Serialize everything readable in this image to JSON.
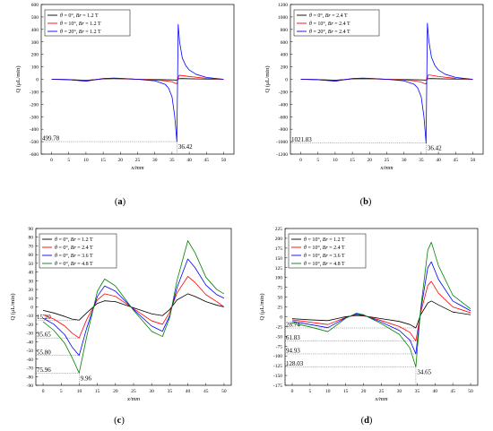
{
  "chart_data": [
    {
      "type": "line",
      "caption": "(a)",
      "ylabel": "Q (μL/min)",
      "xlabel": "x/mm",
      "xlim": [
        -3,
        53
      ],
      "ylim": [
        -600,
        600
      ],
      "xticks": [
        0,
        5,
        10,
        15,
        20,
        25,
        30,
        35,
        40,
        45,
        50
      ],
      "yticks": [
        -600,
        -500,
        -400,
        -300,
        -200,
        -100,
        0,
        100,
        200,
        300,
        400,
        500,
        600
      ],
      "legend_position": "top-left",
      "series": [
        {
          "name": "θ = 0°, Br = 1.2 T",
          "color": "#000000",
          "x": [
            0,
            5,
            10,
            15,
            18,
            20,
            25,
            30,
            34,
            35,
            36,
            36.42,
            37,
            38,
            40,
            45,
            50
          ],
          "y": [
            0,
            -2,
            -8,
            3,
            5,
            4,
            0,
            -2,
            -4,
            -5,
            -6,
            -6,
            5,
            6,
            4,
            2,
            0
          ]
        },
        {
          "name": "θ = 10°, Br = 1.2 T",
          "color": "#ff0000",
          "x": [
            0,
            5,
            10,
            15,
            18,
            20,
            25,
            30,
            33,
            35,
            36,
            36.42,
            37,
            38,
            40,
            45,
            50
          ],
          "y": [
            0,
            -3,
            -12,
            5,
            8,
            6,
            0,
            -6,
            -12,
            -20,
            -32,
            -35,
            32,
            30,
            22,
            8,
            0
          ]
        },
        {
          "name": "θ = 20°, Br = 1.2 T",
          "color": "#0000ff",
          "x": [
            0,
            5,
            10,
            15,
            18,
            20,
            25,
            30,
            33,
            34,
            35,
            35.8,
            36.42,
            36.8,
            37.2,
            38,
            39,
            40,
            42,
            45,
            50
          ],
          "y": [
            0,
            -3,
            -15,
            6,
            10,
            8,
            0,
            -12,
            -40,
            -70,
            -140,
            -300,
            -499.78,
            440,
            300,
            170,
            110,
            75,
            40,
            15,
            0
          ]
        }
      ],
      "annotations": [
        {
          "text": "499.78",
          "x": 0,
          "y": -499.78
        },
        {
          "text": "36.42",
          "x": 36.42,
          "y": -499.78
        }
      ]
    },
    {
      "type": "line",
      "caption": "(b)",
      "ylabel": "Q (μL/min)",
      "xlabel": "x/mm",
      "xlim": [
        -3,
        53
      ],
      "ylim": [
        -1200,
        1200
      ],
      "xticks": [
        0,
        5,
        10,
        15,
        20,
        25,
        30,
        35,
        40,
        45,
        50
      ],
      "yticks": [
        -1200,
        -1000,
        -800,
        -600,
        -400,
        -200,
        0,
        200,
        400,
        600,
        800,
        1000,
        1200
      ],
      "legend_position": "top-left",
      "series": [
        {
          "name": "θ = 0°, Br = 2.4 T",
          "color": "#000000",
          "x": [
            0,
            5,
            10,
            15,
            18,
            20,
            25,
            30,
            34,
            35,
            36,
            36.42,
            37,
            38,
            40,
            45,
            50
          ],
          "y": [
            0,
            -4,
            -15,
            6,
            10,
            8,
            0,
            -4,
            -8,
            -10,
            -12,
            -12,
            10,
            12,
            8,
            4,
            0
          ]
        },
        {
          "name": "θ = 10°, Br = 2.4 T",
          "color": "#ff0000",
          "x": [
            0,
            5,
            10,
            15,
            18,
            20,
            25,
            30,
            33,
            35,
            36,
            36.42,
            37,
            38,
            40,
            45,
            50
          ],
          "y": [
            0,
            -6,
            -24,
            10,
            16,
            12,
            0,
            -12,
            -25,
            -45,
            -70,
            -75,
            70,
            65,
            45,
            15,
            0
          ]
        },
        {
          "name": "θ = 20°, Br = 2.4 T",
          "color": "#0000ff",
          "x": [
            0,
            5,
            10,
            15,
            18,
            20,
            25,
            30,
            33,
            34,
            35,
            35.8,
            36.42,
            36.8,
            37.2,
            38,
            39,
            40,
            42,
            45,
            50
          ],
          "y": [
            0,
            -6,
            -30,
            12,
            20,
            16,
            0,
            -25,
            -80,
            -140,
            -280,
            -600,
            -1021.83,
            900,
            620,
            350,
            220,
            150,
            80,
            30,
            0
          ]
        }
      ],
      "annotations": [
        {
          "text": "1021.83",
          "x": 0,
          "y": -1021.83
        },
        {
          "text": "36.42",
          "x": 36.42,
          "y": -1021.83
        }
      ]
    },
    {
      "type": "line",
      "caption": "(c)",
      "ylabel": "Q (μL/min)",
      "xlabel": "x/mm",
      "xlim": [
        -2,
        52
      ],
      "ylim": [
        -90,
        90
      ],
      "xticks": [
        0,
        5,
        10,
        15,
        20,
        25,
        30,
        35,
        40,
        45,
        50
      ],
      "yticks": [
        -90,
        -80,
        -70,
        -60,
        -50,
        -40,
        -30,
        -20,
        -10,
        0,
        10,
        20,
        30,
        40,
        50,
        60,
        70,
        80,
        90
      ],
      "legend_position": "top-left",
      "series": [
        {
          "name": "θ = 0°, Br = 1.2 T",
          "color": "#000000",
          "x": [
            0,
            3,
            6,
            8,
            9.96,
            12,
            15,
            17,
            20,
            25,
            30,
            33,
            35,
            37,
            40,
            42,
            45,
            48,
            50
          ],
          "y": [
            -4,
            -7,
            -11,
            -14,
            -15.2,
            -7,
            4,
            7,
            6,
            -1,
            -8,
            -10,
            -3,
            8,
            15,
            12,
            6,
            2,
            0
          ]
        },
        {
          "name": "θ = 0°, Br = 2.4 T",
          "color": "#ff0000",
          "x": [
            0,
            3,
            6,
            8,
            9.96,
            12,
            15,
            17,
            20,
            25,
            30,
            33,
            35,
            37,
            40,
            42,
            45,
            48,
            50
          ],
          "y": [
            -9,
            -14,
            -22,
            -30,
            -35.65,
            -15,
            8,
            15,
            12,
            -2,
            -16,
            -20,
            -6,
            16,
            35,
            28,
            14,
            6,
            0
          ]
        },
        {
          "name": "θ = 0°, Br = 3.6 T",
          "color": "#0000ff",
          "x": [
            0,
            3,
            6,
            8,
            9.96,
            12,
            15,
            17,
            20,
            25,
            30,
            33,
            35,
            37,
            40,
            42,
            45,
            48,
            50
          ],
          "y": [
            -13,
            -20,
            -32,
            -46,
            -55.8,
            -25,
            12,
            24,
            18,
            -3,
            -22,
            -28,
            -10,
            22,
            55,
            45,
            25,
            14,
            10
          ]
        },
        {
          "name": "θ = 0°, Br = 4.8 T",
          "color": "#008000",
          "x": [
            0,
            3,
            6,
            8,
            9.96,
            12,
            15,
            17,
            20,
            25,
            30,
            33,
            35,
            37,
            40,
            42,
            45,
            48,
            50
          ],
          "y": [
            -17,
            -27,
            -42,
            -58,
            -75.96,
            -35,
            18,
            32,
            24,
            -4,
            -28,
            -34,
            -12,
            30,
            76,
            62,
            34,
            20,
            15
          ]
        }
      ],
      "annotations": [
        {
          "text": "15.20",
          "x": 0,
          "y": -15.2
        },
        {
          "text": "35.65",
          "x": 0,
          "y": -35.65
        },
        {
          "text": "55.80",
          "x": 0,
          "y": -55.8
        },
        {
          "text": "75.96",
          "x": 0,
          "y": -75.96
        },
        {
          "text": "9.96",
          "x": 9.96,
          "y": -75.96
        }
      ]
    },
    {
      "type": "line",
      "caption": "(d)",
      "ylabel": "Q (μL/min)",
      "xlabel": "x/mm",
      "xlim": [
        -2,
        52
      ],
      "ylim": [
        -175,
        225
      ],
      "xticks": [
        0,
        5,
        10,
        15,
        20,
        25,
        30,
        35,
        40,
        45,
        50
      ],
      "yticks": [
        -175,
        -150,
        -125,
        -100,
        -75,
        -50,
        -25,
        0,
        25,
        50,
        75,
        100,
        125,
        150,
        175,
        200,
        225
      ],
      "legend_position": "top-left",
      "series": [
        {
          "name": "θ = 10°, Br = 1.2 T",
          "color": "#000000",
          "x": [
            0,
            5,
            10,
            15,
            18,
            20,
            25,
            30,
            33,
            34.65,
            36,
            38,
            39,
            41,
            45,
            50
          ],
          "y": [
            -5,
            -8,
            -10,
            0,
            3,
            2,
            -5,
            -12,
            -20,
            -28.74,
            5,
            35,
            40,
            30,
            12,
            5
          ]
        },
        {
          "name": "θ = 10°, Br = 2.4 T",
          "color": "#ff0000",
          "x": [
            0,
            5,
            10,
            15,
            18,
            20,
            25,
            30,
            33,
            34.65,
            36,
            38,
            39,
            41,
            45,
            50
          ],
          "y": [
            -8,
            -14,
            -20,
            -2,
            5,
            3,
            -10,
            -25,
            -40,
            -61.83,
            10,
            80,
            90,
            60,
            25,
            10
          ]
        },
        {
          "name": "θ = 10°, Br = 3.6 T",
          "color": "#0000ff",
          "x": [
            0,
            5,
            10,
            15,
            18,
            20,
            25,
            30,
            33,
            34.65,
            36,
            38,
            39,
            41,
            45,
            50
          ],
          "y": [
            -12,
            -20,
            -28,
            -3,
            7,
            4,
            -14,
            -35,
            -60,
            -94.93,
            15,
            125,
            140,
            95,
            40,
            15
          ]
        },
        {
          "name": "θ = 10°, Br = 4.8 T",
          "color": "#008000",
          "x": [
            0,
            5,
            10,
            15,
            18,
            20,
            25,
            30,
            33,
            34.65,
            36,
            38,
            39,
            41,
            45,
            50
          ],
          "y": [
            -16,
            -26,
            -38,
            -4,
            9,
            5,
            -18,
            -45,
            -80,
            -128.03,
            20,
            170,
            190,
            130,
            55,
            20
          ]
        }
      ],
      "annotations": [
        {
          "text": "28.74",
          "x": 0,
          "y": -28.74
        },
        {
          "text": "61.83",
          "x": 0,
          "y": -61.83
        },
        {
          "text": "94.93",
          "x": 0,
          "y": -94.93
        },
        {
          "text": "128.03",
          "x": 0,
          "y": -128.03
        },
        {
          "text": "34.65",
          "x": 34.65,
          "y": -128.03
        }
      ]
    }
  ]
}
